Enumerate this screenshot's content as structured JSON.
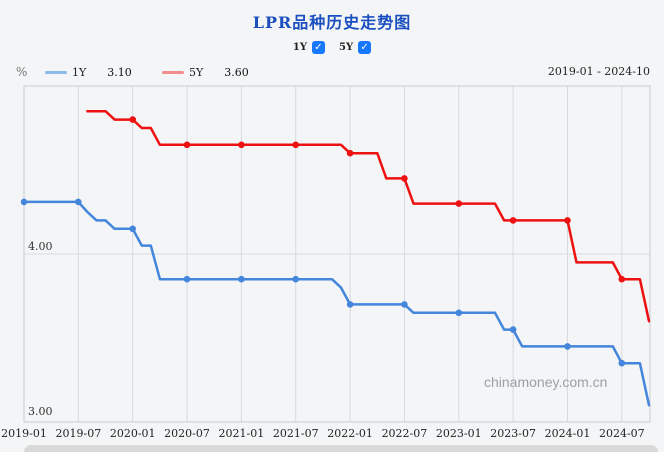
{
  "title": "LPR品种历史走势图",
  "toggles": [
    {
      "label": "1Y",
      "checked": true
    },
    {
      "label": "5Y",
      "checked": true
    }
  ],
  "icons": {
    "checkmark": "✓"
  },
  "legend": {
    "unit": "%",
    "items": [
      {
        "label": "1Y",
        "value": "3.10",
        "swatch_color": "#8fb8ec"
      },
      {
        "label": "5Y",
        "value": "3.60",
        "swatch_color": "#f28d8d"
      }
    ],
    "date_range": "2019-01 - 2024-10"
  },
  "watermark": "chinamoney.com.cn",
  "colors": {
    "accent_blue": "#1677ff",
    "title_blue": "#1b4fc0",
    "line_1y": "#4486db",
    "line_5y": "#ee1111",
    "grid": "#d7dae2",
    "plot_border": "#c8cbd2"
  },
  "chart_data": {
    "type": "line",
    "title": "LPR品种历史走势图",
    "ylabel": "%",
    "x_start": "2019-01",
    "x_end": "2024-10",
    "x_tick_labels": [
      "2019-01",
      "2019-07",
      "2020-01",
      "2020-07",
      "2021-01",
      "2021-07",
      "2022-01",
      "2022-07",
      "2023-01",
      "2023-07",
      "2024-01",
      "2024-07"
    ],
    "y_tick_labels": [
      "4.00",
      "3.00"
    ],
    "y_ticks": [
      4.0,
      3.0
    ],
    "ylim": [
      3.0,
      5.0
    ],
    "grid": "vertical lines at each 6-month tick; horizontal line at 4.00",
    "legend_position": "top-left",
    "marker_every_months": 6,
    "series": [
      {
        "name": "1Y",
        "color": "#4486db",
        "start": "2019-01",
        "values": [
          4.31,
          4.31,
          4.31,
          4.31,
          4.31,
          4.31,
          4.31,
          4.25,
          4.2,
          4.2,
          4.15,
          4.15,
          4.15,
          4.05,
          4.05,
          3.85,
          3.85,
          3.85,
          3.85,
          3.85,
          3.85,
          3.85,
          3.85,
          3.85,
          3.85,
          3.85,
          3.85,
          3.85,
          3.85,
          3.85,
          3.85,
          3.85,
          3.85,
          3.85,
          3.85,
          3.8,
          3.7,
          3.7,
          3.7,
          3.7,
          3.7,
          3.7,
          3.7,
          3.65,
          3.65,
          3.65,
          3.65,
          3.65,
          3.65,
          3.65,
          3.65,
          3.65,
          3.65,
          3.55,
          3.55,
          3.45,
          3.45,
          3.45,
          3.45,
          3.45,
          3.45,
          3.45,
          3.45,
          3.45,
          3.45,
          3.45,
          3.35,
          3.35,
          3.35,
          3.1
        ]
      },
      {
        "name": "5Y",
        "color": "#ee1111",
        "start": "2019-08",
        "values": [
          4.85,
          4.85,
          4.85,
          4.8,
          4.8,
          4.8,
          4.75,
          4.75,
          4.65,
          4.65,
          4.65,
          4.65,
          4.65,
          4.65,
          4.65,
          4.65,
          4.65,
          4.65,
          4.65,
          4.65,
          4.65,
          4.65,
          4.65,
          4.65,
          4.65,
          4.65,
          4.65,
          4.65,
          4.65,
          4.6,
          4.6,
          4.6,
          4.6,
          4.45,
          4.45,
          4.45,
          4.3,
          4.3,
          4.3,
          4.3,
          4.3,
          4.3,
          4.3,
          4.3,
          4.3,
          4.3,
          4.2,
          4.2,
          4.2,
          4.2,
          4.2,
          4.2,
          4.2,
          4.2,
          3.95,
          3.95,
          3.95,
          3.95,
          3.95,
          3.85,
          3.85,
          3.85,
          3.6
        ]
      }
    ]
  }
}
